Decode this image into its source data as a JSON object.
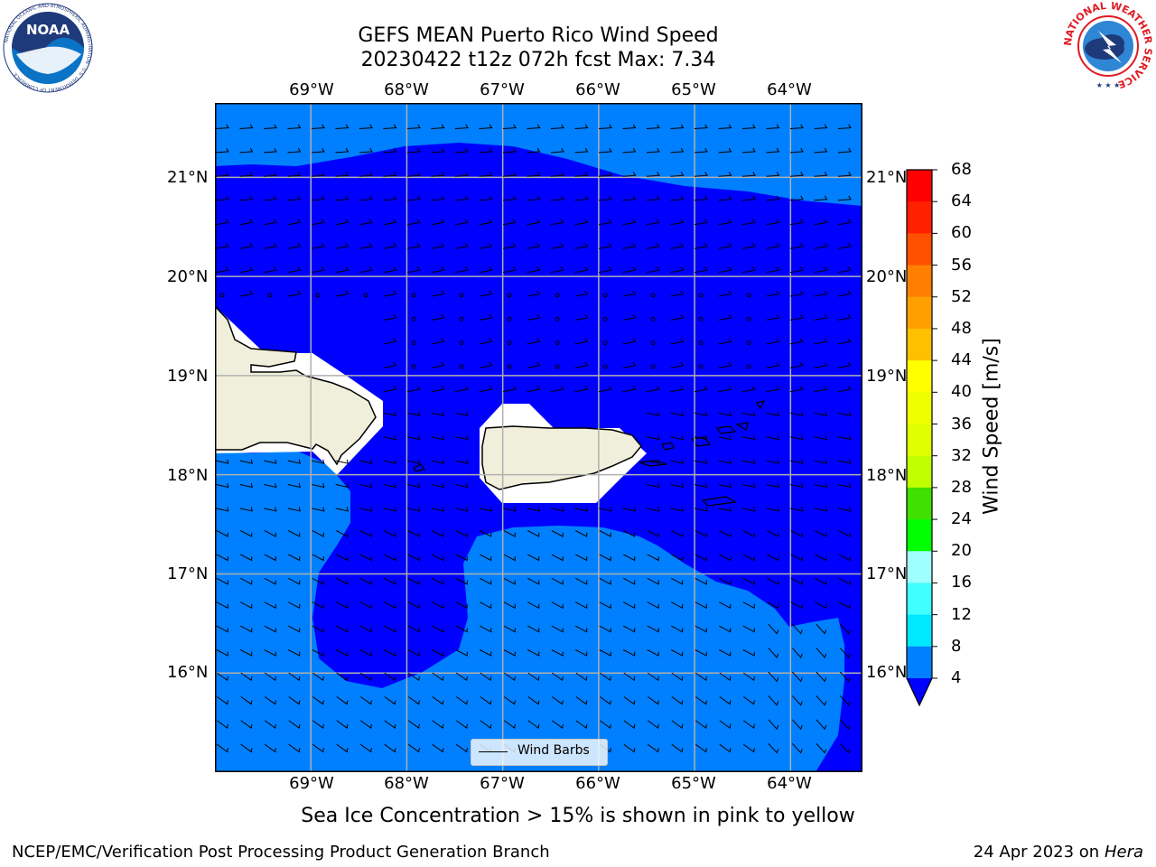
{
  "title": {
    "line1": "GEFS MEAN Puerto Rico Wind Speed",
    "line2": "20230422 t12z 072h fcst   Max: 7.34"
  },
  "map": {
    "lon_ticks": [
      "69°W",
      "68°W",
      "67°W",
      "66°W",
      "65°W",
      "64°W"
    ],
    "lat_ticks_left": [
      "21°N",
      "20°N",
      "19°N",
      "18°N",
      "17°N",
      "16°N"
    ],
    "lat_ticks_right": [
      "21°N",
      "20°N",
      "19°N",
      "18°N",
      "17°N",
      "16°N"
    ],
    "extent": {
      "lon_min": -70.0,
      "lon_max": -63.25,
      "lat_min": 15.0,
      "lat_max": 21.75
    },
    "legend_label": "Wind Barbs",
    "colors": {
      "band_0_4": "#0000ff",
      "band_4_8": "#0080ff",
      "land": "#efefdb",
      "grid": "#b0b0b0",
      "coast": "#000000"
    }
  },
  "colorbar": {
    "label": "Wind Speed [m/s]",
    "ticks": [
      "68",
      "64",
      "60",
      "56",
      "52",
      "48",
      "44",
      "40",
      "36",
      "32",
      "28",
      "24",
      "20",
      "16",
      "12",
      "8",
      "4"
    ],
    "colors": [
      "#ff0000",
      "#ff2800",
      "#ff5000",
      "#ff8000",
      "#ffa000",
      "#ffc000",
      "#ffe000",
      "#ffff00",
      "#e0ff00",
      "#c0ff00",
      "#60e000",
      "#00ff00",
      "#40ff80",
      "#80ffff",
      "#40ffff",
      "#00ffff",
      "#00e0ff",
      "#0080ff"
    ],
    "under_color": "#0000ff"
  },
  "caption": "Sea Ice Concentration > 15% is shown in pink to yellow",
  "credit": {
    "left": "NCEP/EMC/Verification Post Processing Product Generation Branch",
    "date": "24 Apr 2023 on ",
    "machine": "Hera"
  },
  "logos": {
    "noaa": "NOAA",
    "nws_ring": "NATIONAL WEATHER SERVICE",
    "noaa_ring": "NATIONAL OCEANIC AND ATMOSPHERIC ADMINISTRATION · U.S. DEPARTMENT OF COMMERCE"
  }
}
